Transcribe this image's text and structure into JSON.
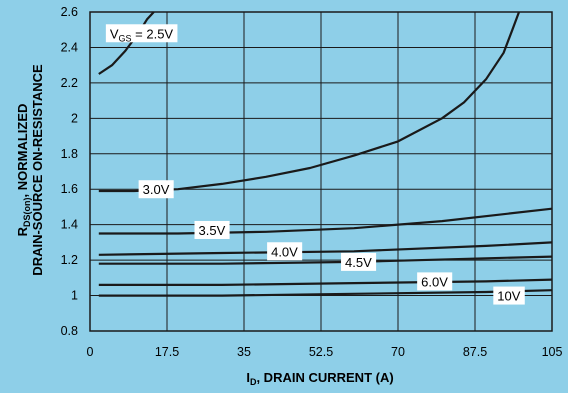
{
  "chart_data": {
    "type": "line",
    "xlabel_main": "I",
    "xlabel_sub": "D",
    "xlabel_rest": ", DRAIN CURRENT (A)",
    "ylabel_line1_main": "R",
    "ylabel_line1_sub": "DS(on)",
    "ylabel_line1_rest": ", NORMALIZED",
    "ylabel_line2": "DRAIN-SOURCE ON-RESISTANCE",
    "xlim": [
      0,
      105
    ],
    "ylim": [
      0.8,
      2.6
    ],
    "x_ticks": [
      "0",
      "17.5",
      "35",
      "52.5",
      "70",
      "87.5",
      "105"
    ],
    "y_ticks": [
      "0.8",
      "1",
      "1.2",
      "1.4",
      "1.6",
      "1.8",
      "2",
      "2.2",
      "2.4",
      "2.6"
    ],
    "x_tick_values": [
      0,
      17.5,
      35,
      52.5,
      70,
      87.5,
      105
    ],
    "y_tick_values": [
      0.8,
      1,
      1.2,
      1.4,
      1.6,
      1.8,
      2,
      2.2,
      2.4,
      2.6
    ],
    "grid": true,
    "series": [
      {
        "name": "V_GS = 2.5V",
        "x": [
          2,
          5,
          8,
          11,
          13,
          14.5
        ],
        "y": [
          2.25,
          2.3,
          2.38,
          2.48,
          2.56,
          2.6
        ]
      },
      {
        "name": "3.0V",
        "x": [
          2,
          10,
          20,
          30,
          40,
          50,
          60,
          70,
          80,
          85,
          90,
          94,
          96,
          97.5
        ],
        "y": [
          1.59,
          1.59,
          1.6,
          1.63,
          1.67,
          1.72,
          1.79,
          1.87,
          2.0,
          2.09,
          2.22,
          2.37,
          2.5,
          2.6
        ]
      },
      {
        "name": "3.5V",
        "x": [
          2,
          20,
          40,
          60,
          80,
          105
        ],
        "y": [
          1.35,
          1.35,
          1.36,
          1.38,
          1.42,
          1.49
        ]
      },
      {
        "name": "4.0V",
        "x": [
          2,
          30,
          60,
          90,
          105
        ],
        "y": [
          1.23,
          1.24,
          1.25,
          1.28,
          1.3
        ]
      },
      {
        "name": "4.5V",
        "x": [
          2,
          30,
          60,
          90,
          105
        ],
        "y": [
          1.18,
          1.18,
          1.19,
          1.21,
          1.22
        ]
      },
      {
        "name": "6.0V",
        "x": [
          2,
          30,
          60,
          90,
          105
        ],
        "y": [
          1.06,
          1.06,
          1.07,
          1.08,
          1.09
        ]
      },
      {
        "name": "10V",
        "x": [
          2,
          30,
          60,
          90,
          105
        ],
        "y": [
          1.0,
          1.0,
          1.01,
          1.02,
          1.03
        ]
      }
    ],
    "annotations": [
      {
        "series": 0,
        "main": "V",
        "sub": "GS",
        "rest": " = 2.5V",
        "x": 11.7,
        "y": 2.48
      },
      {
        "series": 1,
        "text": "3.0V",
        "x": 15,
        "y": 1.6
      },
      {
        "series": 2,
        "text": "3.5V",
        "x": 27.7,
        "y": 1.37
      },
      {
        "series": 3,
        "text": "4.0V",
        "x": 44.2,
        "y": 1.25
      },
      {
        "series": 4,
        "text": "4.5V",
        "x": 61,
        "y": 1.19
      },
      {
        "series": 5,
        "text": "6.0V",
        "x": 78.3,
        "y": 1.08
      },
      {
        "series": 6,
        "text": "10V",
        "x": 95.2,
        "y": 1.0
      }
    ]
  }
}
